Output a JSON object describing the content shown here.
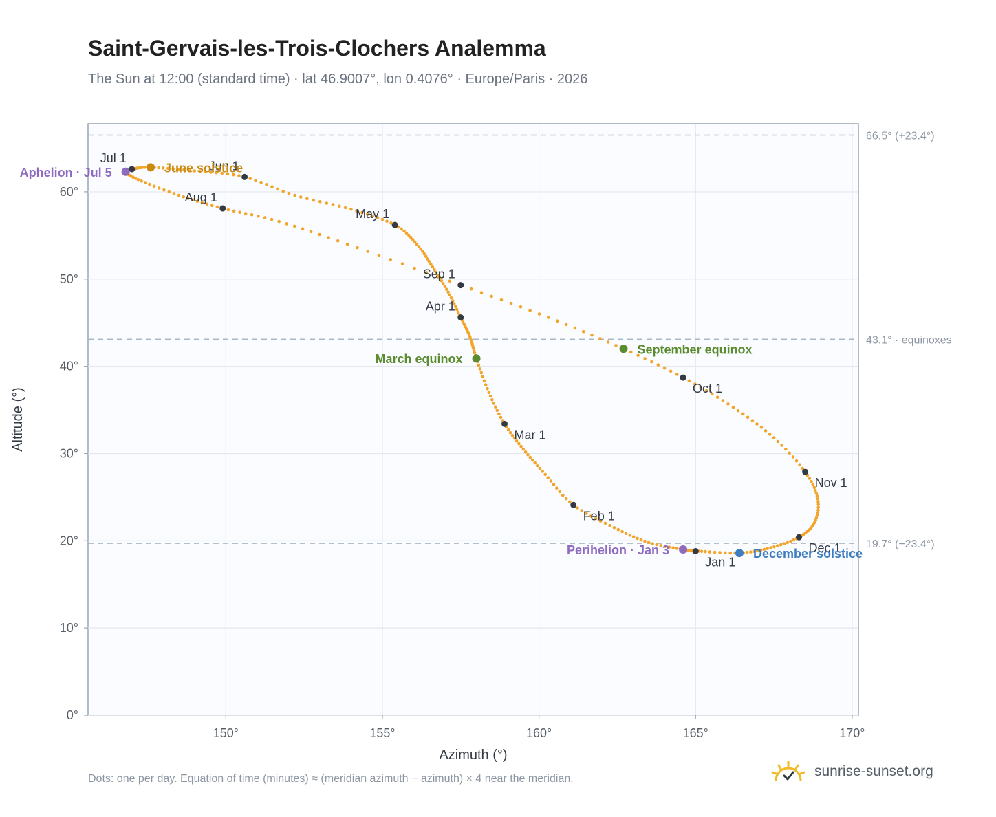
{
  "header": {
    "title": "Saint-Gervais-les-Trois-Clochers Analemma",
    "subtitle": "The Sun at 12:00 (standard time) · lat 46.9007°, lon 0.4076° · Europe/Paris · 2026"
  },
  "footer": {
    "note": "Dots: one per day. Equation of time (minutes) ≈ (meridian azimuth − azimuth) × 4 near the meridian.",
    "brand": "sunrise-sunset.org",
    "brand_icon": "sun-icon"
  },
  "colors": {
    "curve": "#f2a52a",
    "month_dot": "#333a44",
    "march_equinox": "#5b8c2f",
    "september_equinox": "#5b8c2f",
    "june_solstice": "#c98a12",
    "december_solstice": "#3f7dc1",
    "apsis": "#8e6bbf",
    "reference_line": "#aab8c5"
  },
  "chart_data": {
    "type": "scatter",
    "title": "Saint-Gervais-les-Trois-Clochers Analemma",
    "xlabel": "Azimuth (°)",
    "ylabel": "Altitude (°)",
    "xlim": [
      145.6,
      170.2
    ],
    "ylim": [
      0,
      67.8
    ],
    "grid": true,
    "x_ticks": [
      {
        "value": 150,
        "label": "150°"
      },
      {
        "value": 155,
        "label": "155°"
      },
      {
        "value": 160,
        "label": "160°"
      },
      {
        "value": 165,
        "label": "165°"
      },
      {
        "value": 170,
        "label": "170°"
      }
    ],
    "y_ticks": [
      {
        "value": 0,
        "label": "0°"
      },
      {
        "value": 10,
        "label": "10°"
      },
      {
        "value": 20,
        "label": "20°"
      },
      {
        "value": 30,
        "label": "30°"
      },
      {
        "value": 40,
        "label": "40°"
      },
      {
        "value": 50,
        "label": "50°"
      },
      {
        "value": 60,
        "label": "60°"
      }
    ],
    "reference_lines": [
      {
        "y": 66.5,
        "label": "66.5° (+23.4°)"
      },
      {
        "y": 43.1,
        "label": "43.1° · equinoxes"
      },
      {
        "y": 19.7,
        "label": "19.7° (−23.4°)"
      }
    ],
    "path_points": [
      {
        "date": "Jan 1",
        "az": 165.0,
        "alt": 18.8
      },
      {
        "date": "Jan 3",
        "az": 164.6,
        "alt": 19.0
      },
      {
        "date": "Jan 12",
        "az": 163.5,
        "alt": 19.8
      },
      {
        "date": "Jan 22",
        "az": 162.4,
        "alt": 21.5
      },
      {
        "date": "Feb 1",
        "az": 161.1,
        "alt": 24.1
      },
      {
        "date": "Feb 12",
        "az": 160.2,
        "alt": 27.6
      },
      {
        "date": "Feb 20",
        "az": 159.5,
        "alt": 30.5
      },
      {
        "date": "Mar 1",
        "az": 158.9,
        "alt": 33.4
      },
      {
        "date": "Mar 10",
        "az": 158.4,
        "alt": 37.0
      },
      {
        "date": "Mar 20",
        "az": 158.0,
        "alt": 40.9
      },
      {
        "date": "Mar 26",
        "az": 157.8,
        "alt": 43.3
      },
      {
        "date": "Apr 1",
        "az": 157.5,
        "alt": 45.6
      },
      {
        "date": "Apr 8",
        "az": 157.1,
        "alt": 48.5
      },
      {
        "date": "Apr 15",
        "az": 156.6,
        "alt": 51.4
      },
      {
        "date": "Apr 22",
        "az": 156.1,
        "alt": 54.0
      },
      {
        "date": "May 1",
        "az": 155.4,
        "alt": 56.2
      },
      {
        "date": "May 10",
        "az": 154.0,
        "alt": 58.0
      },
      {
        "date": "May 20",
        "az": 152.2,
        "alt": 59.6
      },
      {
        "date": "Jun 1",
        "az": 150.6,
        "alt": 61.7
      },
      {
        "date": "Jun 11",
        "az": 149.0,
        "alt": 62.4
      },
      {
        "date": "Jun 21",
        "az": 147.6,
        "alt": 62.8
      },
      {
        "date": "Jul 1",
        "az": 147.0,
        "alt": 62.6
      },
      {
        "date": "Jul 5",
        "az": 146.8,
        "alt": 62.3
      },
      {
        "date": "Jul 10",
        "az": 147.2,
        "alt": 61.4
      },
      {
        "date": "Jul 20",
        "az": 148.5,
        "alt": 59.6
      },
      {
        "date": "Aug 1",
        "az": 149.9,
        "alt": 58.1
      },
      {
        "date": "Aug 10",
        "az": 151.7,
        "alt": 56.6
      },
      {
        "date": "Aug 20",
        "az": 154.2,
        "alt": 53.6
      },
      {
        "date": "Sep 1",
        "az": 157.5,
        "alt": 49.3
      },
      {
        "date": "Sep 12",
        "az": 160.3,
        "alt": 45.6
      },
      {
        "date": "Sep 22",
        "az": 162.7,
        "alt": 42.0
      },
      {
        "date": "Oct 1",
        "az": 164.6,
        "alt": 38.7
      },
      {
        "date": "Oct 10",
        "az": 166.2,
        "alt": 35.3
      },
      {
        "date": "Oct 20",
        "az": 167.5,
        "alt": 31.8
      },
      {
        "date": "Nov 1",
        "az": 168.5,
        "alt": 27.9
      },
      {
        "date": "Nov 10",
        "az": 168.9,
        "alt": 24.8
      },
      {
        "date": "Nov 20",
        "az": 168.8,
        "alt": 22.1
      },
      {
        "date": "Dec 1",
        "az": 168.3,
        "alt": 20.4
      },
      {
        "date": "Dec 11",
        "az": 167.4,
        "alt": 19.2
      },
      {
        "date": "Dec 21",
        "az": 166.4,
        "alt": 18.6
      },
      {
        "date": "Dec 31",
        "az": 165.1,
        "alt": 18.8
      }
    ],
    "month_markers": [
      {
        "label": "Jan 1",
        "az": 165.0,
        "alt": 18.8,
        "anchor": "below-right"
      },
      {
        "label": "Feb 1",
        "az": 161.1,
        "alt": 24.1,
        "anchor": "below-right"
      },
      {
        "label": "Mar 1",
        "az": 158.9,
        "alt": 33.4,
        "anchor": "below-right"
      },
      {
        "label": "Apr 1",
        "az": 157.5,
        "alt": 45.6,
        "anchor": "above-left"
      },
      {
        "label": "May 1",
        "az": 155.4,
        "alt": 56.2,
        "anchor": "above-left"
      },
      {
        "label": "Jun 1",
        "az": 150.6,
        "alt": 61.7,
        "anchor": "above-left"
      },
      {
        "label": "Jul 1",
        "az": 147.0,
        "alt": 62.6,
        "anchor": "above-left"
      },
      {
        "label": "Aug 1",
        "az": 149.9,
        "alt": 58.1,
        "anchor": "above-left"
      },
      {
        "label": "Sep 1",
        "az": 157.5,
        "alt": 49.3,
        "anchor": "above-left"
      },
      {
        "label": "Oct 1",
        "az": 164.6,
        "alt": 38.7,
        "anchor": "below-right"
      },
      {
        "label": "Nov 1",
        "az": 168.5,
        "alt": 27.9,
        "anchor": "below-right"
      },
      {
        "label": "Dec 1",
        "az": 168.3,
        "alt": 20.4,
        "anchor": "below-right"
      }
    ],
    "events": [
      {
        "label": "March equinox",
        "az": 158.0,
        "alt": 40.9,
        "color_key": "march_equinox",
        "side": "left"
      },
      {
        "label": "September equinox",
        "az": 162.7,
        "alt": 42.0,
        "color_key": "september_equinox",
        "side": "right"
      },
      {
        "label": "June solstice",
        "az": 147.6,
        "alt": 62.8,
        "color_key": "june_solstice",
        "side": "right"
      },
      {
        "label": "December solstice",
        "az": 166.4,
        "alt": 18.6,
        "color_key": "december_solstice",
        "side": "right"
      },
      {
        "label": "Aphelion · Jul 5",
        "az": 146.8,
        "alt": 62.3,
        "color_key": "apsis",
        "side": "left"
      },
      {
        "label": "Perihelion · Jan 3",
        "az": 164.6,
        "alt": 19.0,
        "color_key": "apsis",
        "side": "left"
      }
    ]
  }
}
